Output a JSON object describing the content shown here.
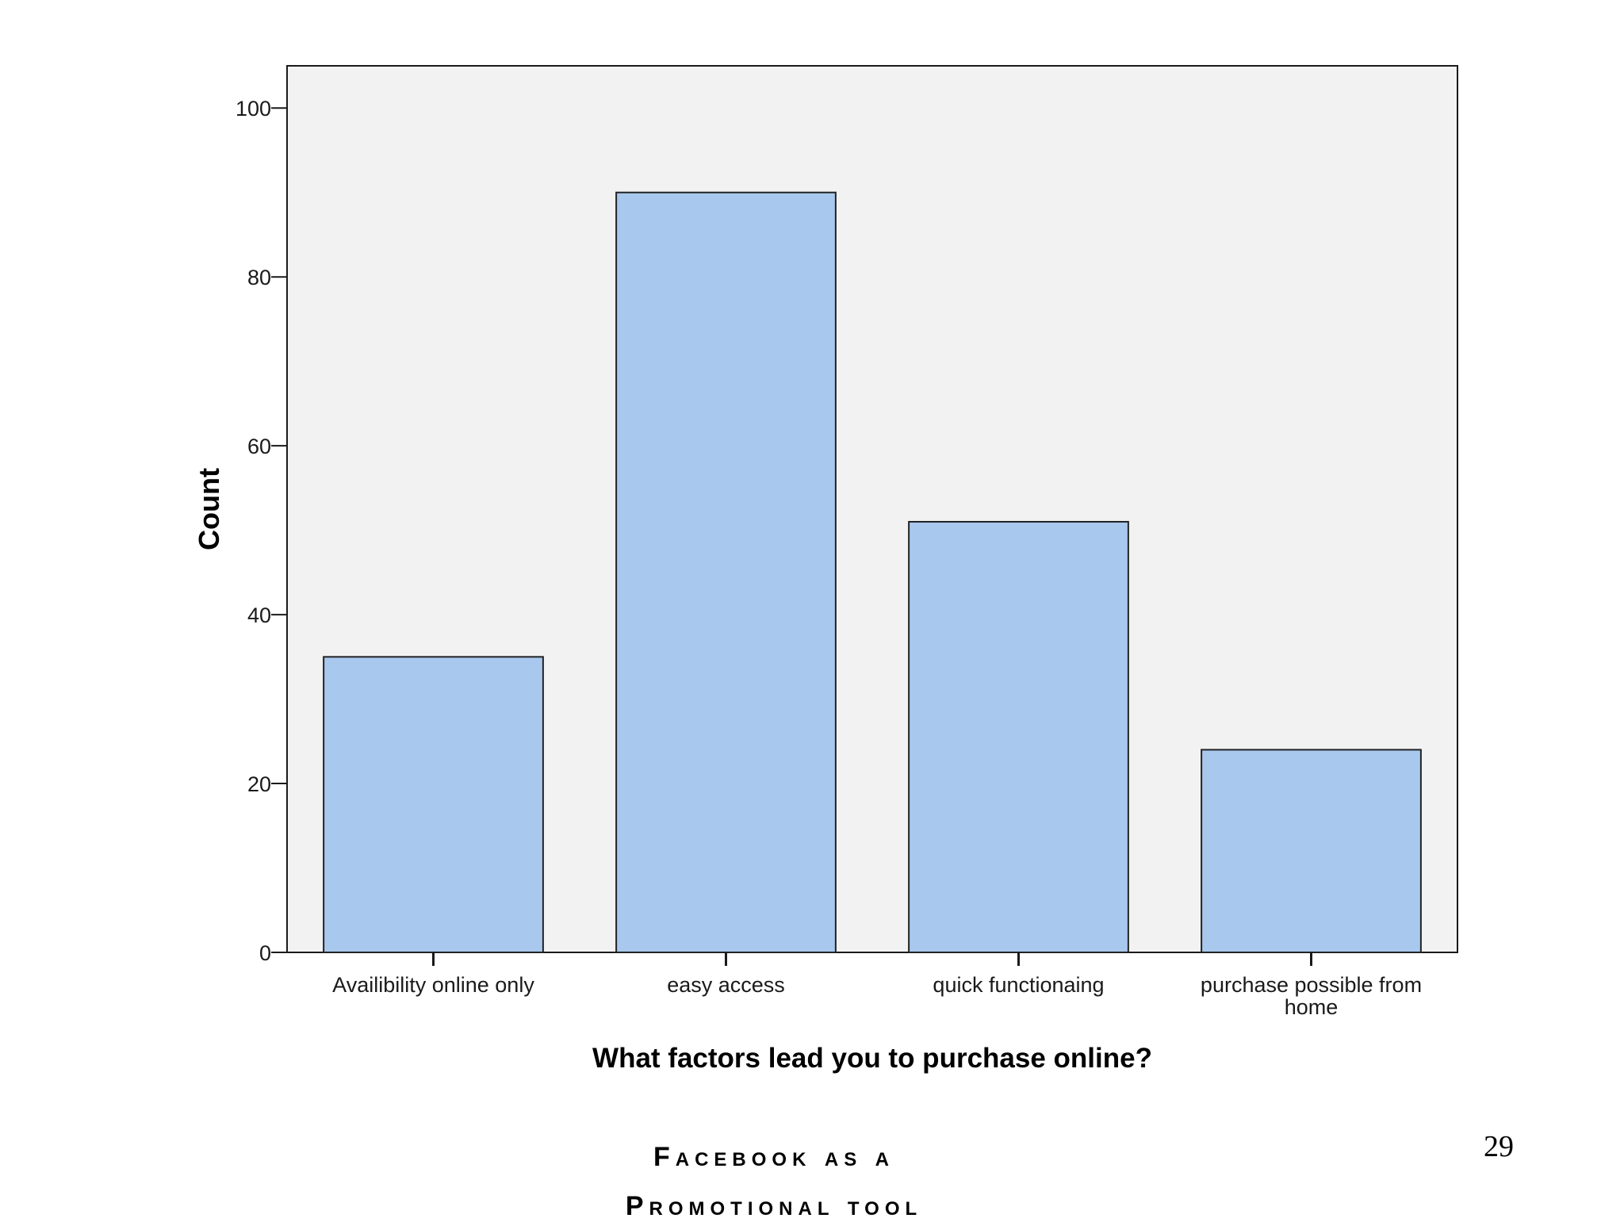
{
  "chart_data": {
    "type": "bar",
    "title": "",
    "xlabel": "What factors lead you to purchase online?",
    "ylabel": "Count",
    "categories": [
      [
        "Availibility online only"
      ],
      [
        "easy access"
      ],
      [
        "quick functionaing"
      ],
      [
        "purchase possible from",
        "home"
      ]
    ],
    "values": [
      35,
      90,
      51,
      24
    ],
    "ylim": [
      0,
      105
    ],
    "yticks": [
      0,
      20,
      40,
      60,
      80,
      100
    ],
    "grid": false,
    "colors": {
      "bar_fill": "#a8c8ee",
      "bar_stroke": "#222222",
      "plot_background": "#f2f2f2",
      "axis": "#1a1a1a"
    }
  },
  "footer": {
    "line1": "Facebook as a",
    "line2": "Promotional tool"
  },
  "page_number": "29"
}
